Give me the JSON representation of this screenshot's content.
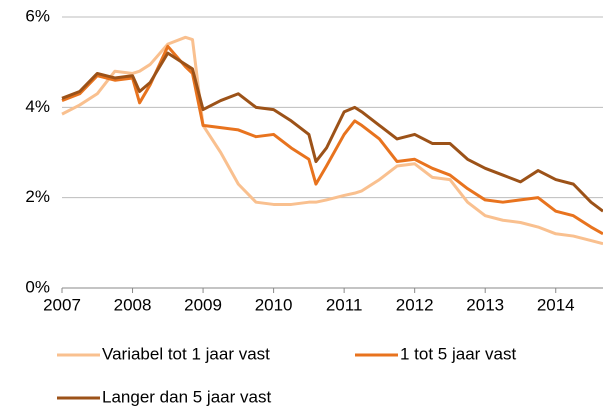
{
  "chart_data": {
    "type": "line",
    "x": [
      2007,
      2007.25,
      2007.5,
      2007.75,
      2008,
      2008.1,
      2008.25,
      2008.5,
      2008.75,
      2008.85,
      2009,
      2009.25,
      2009.5,
      2009.75,
      2010,
      2010.25,
      2010.5,
      2010.6,
      2010.75,
      2011,
      2011.15,
      2011.25,
      2011.5,
      2011.75,
      2012,
      2012.25,
      2012.5,
      2012.75,
      2013,
      2013.25,
      2013.5,
      2013.75,
      2014,
      2014.25,
      2014.5,
      2014.67
    ],
    "series": [
      {
        "name": "Variabel tot 1 jaar vast",
        "color": "#f9c08f",
        "values": [
          3.85,
          4.05,
          4.3,
          4.8,
          4.75,
          4.8,
          4.95,
          5.4,
          5.55,
          5.5,
          3.6,
          3.0,
          2.3,
          1.9,
          1.85,
          1.85,
          1.9,
          1.9,
          1.95,
          2.05,
          2.1,
          2.15,
          2.4,
          2.7,
          2.75,
          2.45,
          2.4,
          1.9,
          1.6,
          1.5,
          1.45,
          1.35,
          1.2,
          1.15,
          1.05,
          0.98
        ]
      },
      {
        "name": "1 tot 5 jaar vast",
        "color": "#e8731e",
        "values": [
          4.15,
          4.3,
          4.7,
          4.6,
          4.65,
          4.1,
          4.5,
          5.35,
          4.9,
          4.75,
          3.6,
          3.55,
          3.5,
          3.35,
          3.4,
          3.1,
          2.85,
          2.3,
          2.7,
          3.4,
          3.7,
          3.6,
          3.3,
          2.8,
          2.85,
          2.65,
          2.5,
          2.2,
          1.95,
          1.9,
          1.95,
          2.0,
          1.7,
          1.6,
          1.35,
          1.2
        ]
      },
      {
        "name": "Langer dan 5 jaar vast",
        "color": "#9c5218",
        "values": [
          4.2,
          4.35,
          4.75,
          4.65,
          4.7,
          4.35,
          4.55,
          5.2,
          4.95,
          4.85,
          3.95,
          4.15,
          4.3,
          4.0,
          3.95,
          3.7,
          3.4,
          2.8,
          3.1,
          3.9,
          4.0,
          3.9,
          3.6,
          3.3,
          3.4,
          3.2,
          3.2,
          2.85,
          2.65,
          2.5,
          2.35,
          2.6,
          2.4,
          2.3,
          1.9,
          1.7
        ]
      }
    ],
    "xlim": [
      2007,
      2014.67
    ],
    "xticks": [
      2007,
      2008,
      2009,
      2010,
      2011,
      2012,
      2013,
      2014
    ],
    "ylim": [
      0,
      6
    ],
    "yticks": [
      {
        "value": 0,
        "label": "0%"
      },
      {
        "value": 2,
        "label": "2%"
      },
      {
        "value": 4,
        "label": "4%"
      },
      {
        "value": 6,
        "label": "6%"
      }
    ],
    "grid": true,
    "legend": "bottom"
  }
}
